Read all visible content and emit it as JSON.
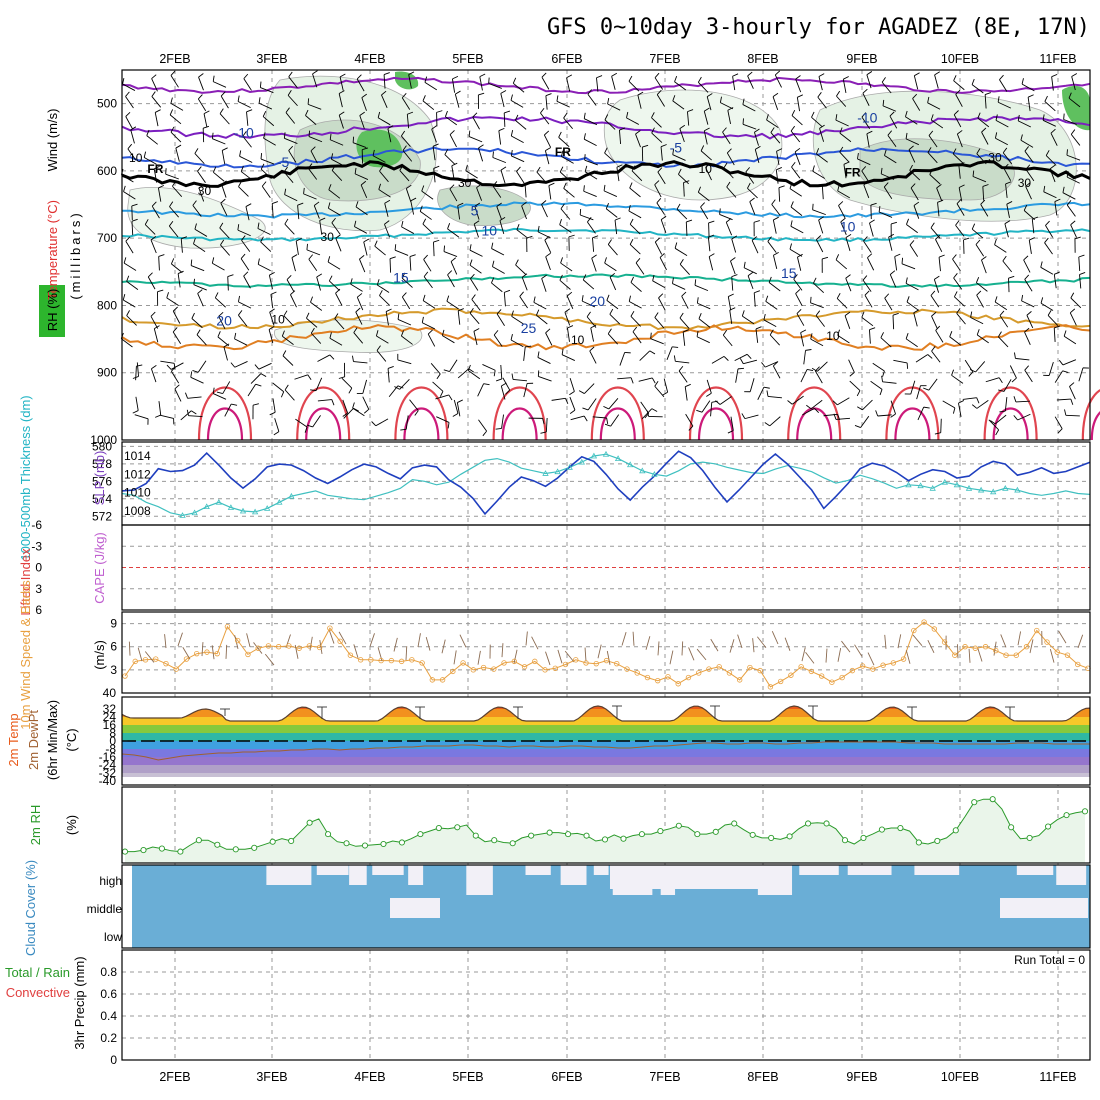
{
  "title": "GFS 0~10day 3-hourly for AGADEZ (8E, 17N)",
  "dates": [
    "2FEB",
    "3FEB",
    "4FEB",
    "5FEB",
    "6FEB",
    "7FEB",
    "8FEB",
    "9FEB",
    "10FEB",
    "11FEB"
  ],
  "colors": {
    "grid": "#999999",
    "wind_profile": "#000000",
    "rh_fill": "#2db52d",
    "cloud": "#6aaed6",
    "cloud_bg": "#f2f0f7",
    "thickness": "#40c0c0",
    "slp": "#1f3fbf",
    "wind10": "#e8a040",
    "rh2m": "#2a9a2a",
    "lifted": "#e04040"
  },
  "chart_data": [
    {
      "type": "contour",
      "panel": "vertical-profile",
      "ylabel_parts": [
        "Wind (m/s)",
        "Temperature (°C)",
        "RH (%)",
        "(millibars)"
      ],
      "y_ticks": [
        500,
        600,
        700,
        800,
        900,
        1000
      ],
      "ylim": [
        450,
        1000
      ],
      "temperature_contour_labels": [
        {
          "text": "-10",
          "time": 0.7,
          "p": 550
        },
        {
          "text": "-10",
          "time": 7.05,
          "p": 528
        },
        {
          "text": "-5",
          "time": 1.1,
          "p": 594
        },
        {
          "text": "-5",
          "time": 5.1,
          "p": 573
        },
        {
          "text": "5",
          "time": 3.05,
          "p": 666
        },
        {
          "text": "10",
          "time": 3.2,
          "p": 696
        },
        {
          "text": "10",
          "time": 6.85,
          "p": 690
        },
        {
          "text": "15",
          "time": 2.3,
          "p": 766
        },
        {
          "text": "15",
          "time": 6.25,
          "p": 759
        },
        {
          "text": "20",
          "time": 0.5,
          "p": 830
        },
        {
          "text": "20",
          "time": 4.3,
          "p": 801
        },
        {
          "text": "25",
          "time": 3.6,
          "p": 841
        }
      ],
      "freezing_labels": [
        {
          "text": "FR",
          "time": -0.2,
          "p": 603
        },
        {
          "text": "FR",
          "time": 3.95,
          "p": 578
        },
        {
          "text": "FR",
          "time": 6.9,
          "p": 608
        }
      ],
      "rh_contour_labels": [
        {
          "text": "10",
          "time": -0.4,
          "p": 587
        },
        {
          "text": "30",
          "time": 0.3,
          "p": 636
        },
        {
          "text": "30",
          "time": 2.95,
          "p": 624
        },
        {
          "text": "30",
          "time": 1.55,
          "p": 704
        },
        {
          "text": "10",
          "time": 5.4,
          "p": 603
        },
        {
          "text": "30",
          "time": 8.35,
          "p": 586
        },
        {
          "text": "30",
          "time": 8.65,
          "p": 624
        },
        {
          "text": "10",
          "time": 1.05,
          "p": 827
        },
        {
          "text": "10",
          "time": 4.1,
          "p": 857
        },
        {
          "text": "10",
          "time": 6.7,
          "p": 851
        }
      ]
    },
    {
      "type": "line",
      "panel": "thickness-slp",
      "ylabel_left": "1000-500mb Thickness (dm)",
      "ylabel_right": "SLP (mb)",
      "left_ticks": [
        572,
        574,
        576,
        578,
        580
      ],
      "right_ticks": [
        1008,
        1010,
        1012,
        1014
      ],
      "series": [
        {
          "name": "Thickness (dm)",
          "values": [
            574.6,
            574.4,
            573.6,
            573.1,
            572.4,
            572.1,
            572.4,
            573.1,
            573.6,
            573.0,
            572.6,
            572.5,
            572.9,
            573.6,
            574.3,
            574.6,
            574.9,
            574.4,
            574.2,
            574.0,
            573.9,
            574.3,
            574.7,
            575.2,
            576.2,
            576.0,
            575.6,
            575.9,
            576.8,
            577.6,
            578.4,
            578.6,
            578.2,
            577.5,
            577.2,
            576.9,
            577.1,
            577.6,
            578.2,
            578.9,
            579.1,
            578.6,
            577.9,
            577.2,
            576.8,
            576.6,
            577.2,
            578.0,
            578.2,
            578.0,
            577.6,
            577.3,
            577.0,
            576.9,
            577.4,
            577.8,
            577.5,
            577.1,
            576.4,
            575.8,
            576.1,
            576.7,
            576.3,
            575.8,
            575.2,
            575.6,
            575.5,
            575.2,
            575.9,
            575.6,
            575.2,
            575.0,
            574.8,
            575.2,
            575.0,
            574.6,
            574.4,
            574.6,
            574.9,
            574.6,
            574.5
          ]
        },
        {
          "name": "SLP (mb)",
          "values": [
            1010.2,
            1010.3,
            1011.0,
            1012.6,
            1012.3,
            1012.4,
            1013.0,
            1014.3,
            1013.0,
            1011.6,
            1010.5,
            1011.5,
            1012.8,
            1013.1,
            1013.0,
            1012.4,
            1011.6,
            1011.0,
            1011.7,
            1012.5,
            1013.1,
            1012.8,
            1012.1,
            1011.5,
            1012.7,
            1013.0,
            1012.8,
            1011.4,
            1010.6,
            1009.4,
            1007.7,
            1009.1,
            1010.6,
            1011.7,
            1011.3,
            1010.7,
            1011.6,
            1012.8,
            1013.9,
            1013.4,
            1012.0,
            1010.4,
            1009.2,
            1010.6,
            1011.8,
            1013.2,
            1014.5,
            1013.8,
            1012.4,
            1010.6,
            1009.0,
            1010.3,
            1011.7,
            1013.1,
            1014.2,
            1013.1,
            1011.7,
            1010.3,
            1008.3,
            1009.6,
            1011.0,
            1012.6,
            1013.2,
            1012.9,
            1012.2,
            1011.3,
            1012.0,
            1012.5,
            1012.3,
            1011.6,
            1011.8,
            1012.8,
            1013.4,
            1013.1,
            1011.9,
            1012.2,
            1012.7,
            1012.1,
            1012.3,
            1012.8,
            1013.3
          ]
        }
      ]
    },
    {
      "type": "line",
      "panel": "stability",
      "ylabel_left": "Lifted Index",
      "ylabel_right": "CAPE (J/kg)",
      "ticks": [
        -6,
        -3,
        0,
        3,
        6
      ],
      "ylim": [
        -6,
        6
      ],
      "reference_line": 0
    },
    {
      "type": "line",
      "panel": "10m-wind",
      "ylabel": "10m Wind Speed & Barbs",
      "yunits": "(m/s)",
      "ticks": [
        3,
        6,
        9
      ],
      "ylim": [
        0,
        10.5
      ],
      "series": [
        {
          "name": "10m Wind Speed",
          "values": [
            2.2,
            4.1,
            4.3,
            4.4,
            3.8,
            3.1,
            4.4,
            5.1,
            5.3,
            5.1,
            8.6,
            6.8,
            5.0,
            5.8,
            6.1,
            6.0,
            6.1,
            5.8,
            6.1,
            5.9,
            8.4,
            6.7,
            4.9,
            4.3,
            4.3,
            4.2,
            4.2,
            4.1,
            4.3,
            3.9,
            1.7,
            1.7,
            2.8,
            3.9,
            3.0,
            3.3,
            3.1,
            3.9,
            4.1,
            3.4,
            4.1,
            3.0,
            3.2,
            3.7,
            4.3,
            3.9,
            3.8,
            4.2,
            3.8,
            3.1,
            2.6,
            2.0,
            1.6,
            2.1,
            1.2,
            2.0,
            2.6,
            3.1,
            3.4,
            2.6,
            1.7,
            3.3,
            2.9,
            0.8,
            1.5,
            2.3,
            3.4,
            2.8,
            2.2,
            1.4,
            2.0,
            2.9,
            3.5,
            3.1,
            3.6,
            3.9,
            4.4,
            8.1,
            9.2,
            8.3,
            6.6,
            4.9,
            6.0,
            5.8,
            6.0,
            5.5,
            4.9,
            4.9,
            6.0,
            8.1,
            6.6,
            5.3,
            4.9,
            3.7,
            3.2
          ]
        }
      ]
    },
    {
      "type": "area",
      "panel": "2m-temp",
      "ylabel_parts": [
        "2m Temp",
        "2m DewPt",
        "(6hr Min/Max)",
        "(°C)"
      ],
      "ticks": [
        40,
        32,
        24,
        16,
        8,
        0,
        -8,
        -16,
        -24,
        -32,
        -40
      ],
      "ylim": [
        -44,
        44
      ],
      "series": [
        {
          "name": "2m Temp",
          "daily_min": [
            23,
            20,
            20,
            20,
            20,
            20,
            20,
            20,
            20,
            20
          ],
          "daily_max": [
            32,
            34,
            34,
            34,
            35,
            35,
            35,
            34,
            34,
            33
          ]
        },
        {
          "name": "2m DewPt",
          "values": [
            -13,
            -14,
            -16,
            -19,
            -17,
            -15,
            -14,
            -13,
            -12,
            -12,
            -11,
            -11,
            -10,
            -10,
            -9,
            -9,
            -8,
            -8,
            -9,
            -8,
            -8,
            -7,
            -7,
            -6,
            -6,
            -5,
            -5,
            -5,
            -4,
            -4,
            -5,
            -5,
            -6,
            -5,
            -5,
            -6,
            -6,
            -5,
            -5,
            -6,
            -6,
            -7,
            -7,
            -6,
            -5,
            -5,
            -4,
            -3,
            -2,
            -2,
            -3,
            -3,
            -2,
            -2,
            -3,
            -3,
            -2,
            -2,
            -1,
            -1,
            -1,
            -1,
            -1,
            -1,
            -1,
            -2,
            -2,
            -2,
            -3,
            -3,
            -3,
            -3,
            -3,
            -3,
            -2,
            -2,
            -2,
            -3,
            -3,
            -3,
            -3
          ]
        }
      ]
    },
    {
      "type": "area",
      "panel": "2m-rh",
      "ylabel": "2m RH",
      "yunits": "(%)",
      "ylim": [
        0,
        100
      ],
      "series": [
        {
          "name": "2m RH",
          "values": [
            15,
            15,
            17,
            21,
            19,
            16,
            15,
            23,
            30,
            30,
            24,
            18,
            18,
            18,
            20,
            24,
            28,
            32,
            29,
            41,
            53,
            58,
            38,
            28,
            26,
            22,
            23,
            24,
            25,
            29,
            27,
            32,
            38,
            42,
            46,
            45,
            47,
            50,
            36,
            28,
            30,
            27,
            26,
            33,
            36,
            38,
            40,
            40,
            38,
            39,
            36,
            29,
            31,
            37,
            32,
            36,
            38,
            38,
            42,
            45,
            49,
            47,
            38,
            38,
            41,
            50,
            52,
            44,
            37,
            33,
            33,
            31,
            35,
            45,
            52,
            53,
            52,
            45,
            30,
            25,
            33,
            38,
            44,
            46,
            46,
            42,
            27,
            25,
            29,
            33,
            43,
            61,
            80,
            84,
            84,
            71,
            47,
            32,
            33,
            36,
            48,
            57,
            63,
            66,
            68
          ]
        }
      ]
    },
    {
      "type": "area",
      "panel": "cloud-cover",
      "ylabel": "Cloud Cover (%)",
      "layers": [
        "high",
        "middle",
        "low"
      ]
    },
    {
      "type": "bar",
      "panel": "precip",
      "ylabel": "3hr Precip (mm)",
      "legend": "Total / Rain Convective",
      "legend_total": "Total / Rain",
      "legend_conv": "Convective",
      "annotation": "Run Total = 0",
      "ticks": [
        "0",
        "0.2",
        "0.4",
        "0.6",
        "0.8"
      ],
      "ylim": [
        0,
        1
      ],
      "values": []
    }
  ]
}
